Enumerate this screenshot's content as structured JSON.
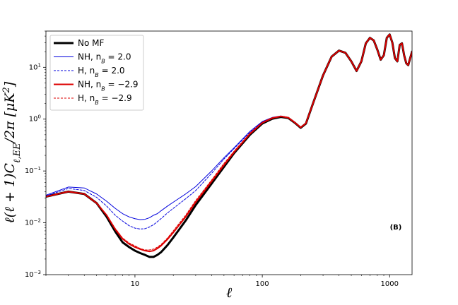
{
  "chart_data": {
    "type": "line",
    "xlabel": "ℓ",
    "ylabel": "ℓ(ℓ + 1)C",
    "ylabel_sub": "ℓ,EE",
    "ylabel_tail": "/2π [μK",
    "ylabel_sup": "2",
    "ylabel_end": "]",
    "x_scale": "log",
    "y_scale": "log",
    "xlim": [
      2,
      1500
    ],
    "ylim": [
      0.001,
      50
    ],
    "x_ticks": [
      {
        "value": 10,
        "label": "10",
        "base": "10",
        "exp": "1",
        "show_plain": true
      },
      {
        "value": 100,
        "label": "100",
        "show_plain": true
      },
      {
        "value": 1000,
        "label": "1000",
        "show_plain": true
      }
    ],
    "y_ticks": [
      {
        "value": 0.001,
        "base": "10",
        "exp": "−3"
      },
      {
        "value": 0.01,
        "base": "10",
        "exp": "−2"
      },
      {
        "value": 0.1,
        "base": "10",
        "exp": "−1"
      },
      {
        "value": 1,
        "base": "10",
        "exp": "0"
      },
      {
        "value": 10,
        "base": "10",
        "exp": "1"
      }
    ],
    "annotation": "(B)",
    "legend_position": "upper-left",
    "series": [
      {
        "name": "No MF",
        "name_main": "No MF",
        "color": "#000000",
        "dash": "solid",
        "width": 3,
        "x": [
          2,
          3,
          4,
          5,
          6,
          7,
          8,
          9,
          10,
          11,
          12,
          13,
          14,
          15,
          16,
          18,
          20,
          25,
          30,
          40,
          50,
          60,
          80,
          100,
          120,
          140,
          160,
          180,
          200,
          220,
          250,
          300,
          350,
          400,
          450,
          500,
          550,
          600,
          650,
          700,
          750,
          800,
          850,
          900,
          950,
          1000,
          1050,
          1100,
          1150,
          1200,
          1250,
          1300,
          1350,
          1400,
          1450,
          1500
        ],
        "y": [
          0.032,
          0.04,
          0.036,
          0.024,
          0.013,
          0.0068,
          0.0042,
          0.0034,
          0.0029,
          0.0026,
          0.0024,
          0.0022,
          0.0022,
          0.0024,
          0.0027,
          0.0037,
          0.0052,
          0.011,
          0.022,
          0.057,
          0.12,
          0.22,
          0.5,
          0.82,
          1.02,
          1.1,
          1.05,
          0.85,
          0.68,
          0.82,
          2.0,
          7.0,
          16,
          21,
          19,
          13,
          8.5,
          13,
          29,
          37,
          33,
          22,
          14,
          17,
          37,
          43,
          30,
          15,
          13,
          27,
          29,
          17,
          12,
          11,
          15,
          20
        ]
      },
      {
        "name": "NH, n_B=2.0",
        "name_main": "NH, n",
        "name_sub": "B",
        "name_tail": " = 2.0",
        "color": "#0000dd",
        "dash": "solid",
        "width": 1,
        "x": [
          2,
          3,
          4,
          5,
          6,
          7,
          8,
          9,
          10,
          11,
          12,
          13,
          14,
          15,
          16,
          18,
          20,
          25,
          30,
          40,
          50,
          60,
          80,
          100,
          120,
          140,
          160,
          180,
          200,
          220,
          250,
          300,
          350,
          400,
          450,
          500,
          550,
          600,
          650,
          700,
          750,
          800,
          850,
          900,
          950,
          1000,
          1050,
          1100,
          1150,
          1200,
          1250,
          1300,
          1350,
          1400,
          1450,
          1500
        ],
        "y": [
          0.034,
          0.049,
          0.047,
          0.036,
          0.026,
          0.019,
          0.015,
          0.013,
          0.012,
          0.0115,
          0.0117,
          0.0125,
          0.014,
          0.015,
          0.017,
          0.021,
          0.025,
          0.036,
          0.05,
          0.1,
          0.18,
          0.28,
          0.58,
          0.9,
          1.08,
          1.15,
          1.08,
          0.87,
          0.69,
          0.83,
          2.0,
          7.0,
          16,
          21,
          19,
          13,
          8.5,
          13,
          29,
          37,
          33,
          22,
          14,
          17,
          37,
          43,
          30,
          15,
          13,
          27,
          29,
          17,
          12,
          11,
          15,
          20
        ]
      },
      {
        "name": "H, n_B=2.0",
        "name_main": "H, n",
        "name_sub": "B",
        "name_tail": " = 2.0",
        "color": "#0000dd",
        "dash": "dashed",
        "width": 1,
        "x": [
          2,
          3,
          4,
          5,
          6,
          7,
          8,
          9,
          10,
          11,
          12,
          13,
          14,
          15,
          16,
          18,
          20,
          25,
          30,
          40,
          50,
          60,
          80,
          100,
          120,
          140,
          160,
          180,
          200,
          220,
          250,
          300,
          350,
          400,
          450,
          500,
          550,
          600,
          650,
          700,
          750,
          800,
          850,
          900,
          950,
          1000,
          1050,
          1100,
          1150,
          1200,
          1250,
          1300,
          1350,
          1400,
          1450,
          1500
        ],
        "y": [
          0.033,
          0.046,
          0.042,
          0.031,
          0.021,
          0.014,
          0.0108,
          0.0088,
          0.0079,
          0.0076,
          0.0077,
          0.0083,
          0.0092,
          0.0105,
          0.012,
          0.0155,
          0.019,
          0.029,
          0.042,
          0.09,
          0.17,
          0.27,
          0.56,
          0.88,
          1.07,
          1.14,
          1.07,
          0.86,
          0.69,
          0.83,
          2.0,
          7.0,
          16,
          21,
          19,
          13,
          8.5,
          13,
          29,
          37,
          33,
          22,
          14,
          17,
          37,
          43,
          30,
          15,
          13,
          27,
          29,
          17,
          12,
          11,
          15,
          20
        ]
      },
      {
        "name": "NH, n_B=−2.9",
        "name_main": "NH, n",
        "name_sub": "B",
        "name_tail": " = −2.9",
        "color": "#dd0000",
        "dash": "solid",
        "width": 2,
        "x": [
          2,
          3,
          4,
          5,
          6,
          7,
          8,
          9,
          10,
          11,
          12,
          13,
          14,
          15,
          16,
          18,
          20,
          25,
          30,
          40,
          50,
          60,
          80,
          100,
          120,
          140,
          160,
          180,
          200,
          220,
          250,
          300,
          350,
          400,
          450,
          500,
          550,
          600,
          650,
          700,
          750,
          800,
          850,
          900,
          950,
          1000,
          1050,
          1100,
          1150,
          1200,
          1250,
          1300,
          1350,
          1400,
          1450,
          1500
        ],
        "y": [
          0.032,
          0.04,
          0.036,
          0.024,
          0.014,
          0.0075,
          0.0049,
          0.0039,
          0.0034,
          0.0031,
          0.0029,
          0.0028,
          0.0029,
          0.0032,
          0.0036,
          0.0048,
          0.0065,
          0.013,
          0.025,
          0.063,
          0.13,
          0.23,
          0.52,
          0.85,
          1.05,
          1.13,
          1.07,
          0.86,
          0.69,
          0.83,
          2.0,
          7.0,
          16,
          21,
          19,
          13,
          8.5,
          13,
          29,
          37,
          33,
          22,
          14,
          17,
          37,
          43,
          30,
          15,
          13,
          27,
          29,
          17,
          12,
          11,
          15,
          20
        ]
      },
      {
        "name": "H, n_B=−2.9",
        "name_main": "H, n",
        "name_sub": "B",
        "name_tail": " = −2.9",
        "color": "#dd0000",
        "dash": "dashed",
        "width": 1,
        "x": [
          2,
          3,
          4,
          5,
          6,
          7,
          8,
          9,
          10,
          11,
          12,
          13,
          14,
          15,
          16,
          18,
          20,
          25,
          30,
          40,
          50,
          60,
          80,
          100,
          120,
          140,
          160,
          180,
          200,
          220,
          250,
          300,
          350,
          400,
          450,
          500,
          550,
          600,
          650,
          700,
          750,
          800,
          850,
          900,
          950,
          1000,
          1050,
          1100,
          1150,
          1200,
          1250,
          1300,
          1350,
          1400,
          1450,
          1500
        ],
        "y": [
          0.032,
          0.04,
          0.036,
          0.024,
          0.014,
          0.0078,
          0.0051,
          0.0041,
          0.0036,
          0.0032,
          0.003,
          0.003,
          0.0031,
          0.0034,
          0.0038,
          0.0051,
          0.007,
          0.014,
          0.027,
          0.067,
          0.14,
          0.24,
          0.54,
          0.87,
          1.07,
          1.15,
          1.08,
          0.87,
          0.69,
          0.83,
          2.0,
          7.0,
          16,
          21,
          19,
          13,
          8.5,
          13,
          29,
          37,
          33,
          22,
          14,
          17,
          37,
          43,
          30,
          15,
          13,
          27,
          29,
          17,
          12,
          11,
          15,
          20
        ]
      }
    ]
  }
}
